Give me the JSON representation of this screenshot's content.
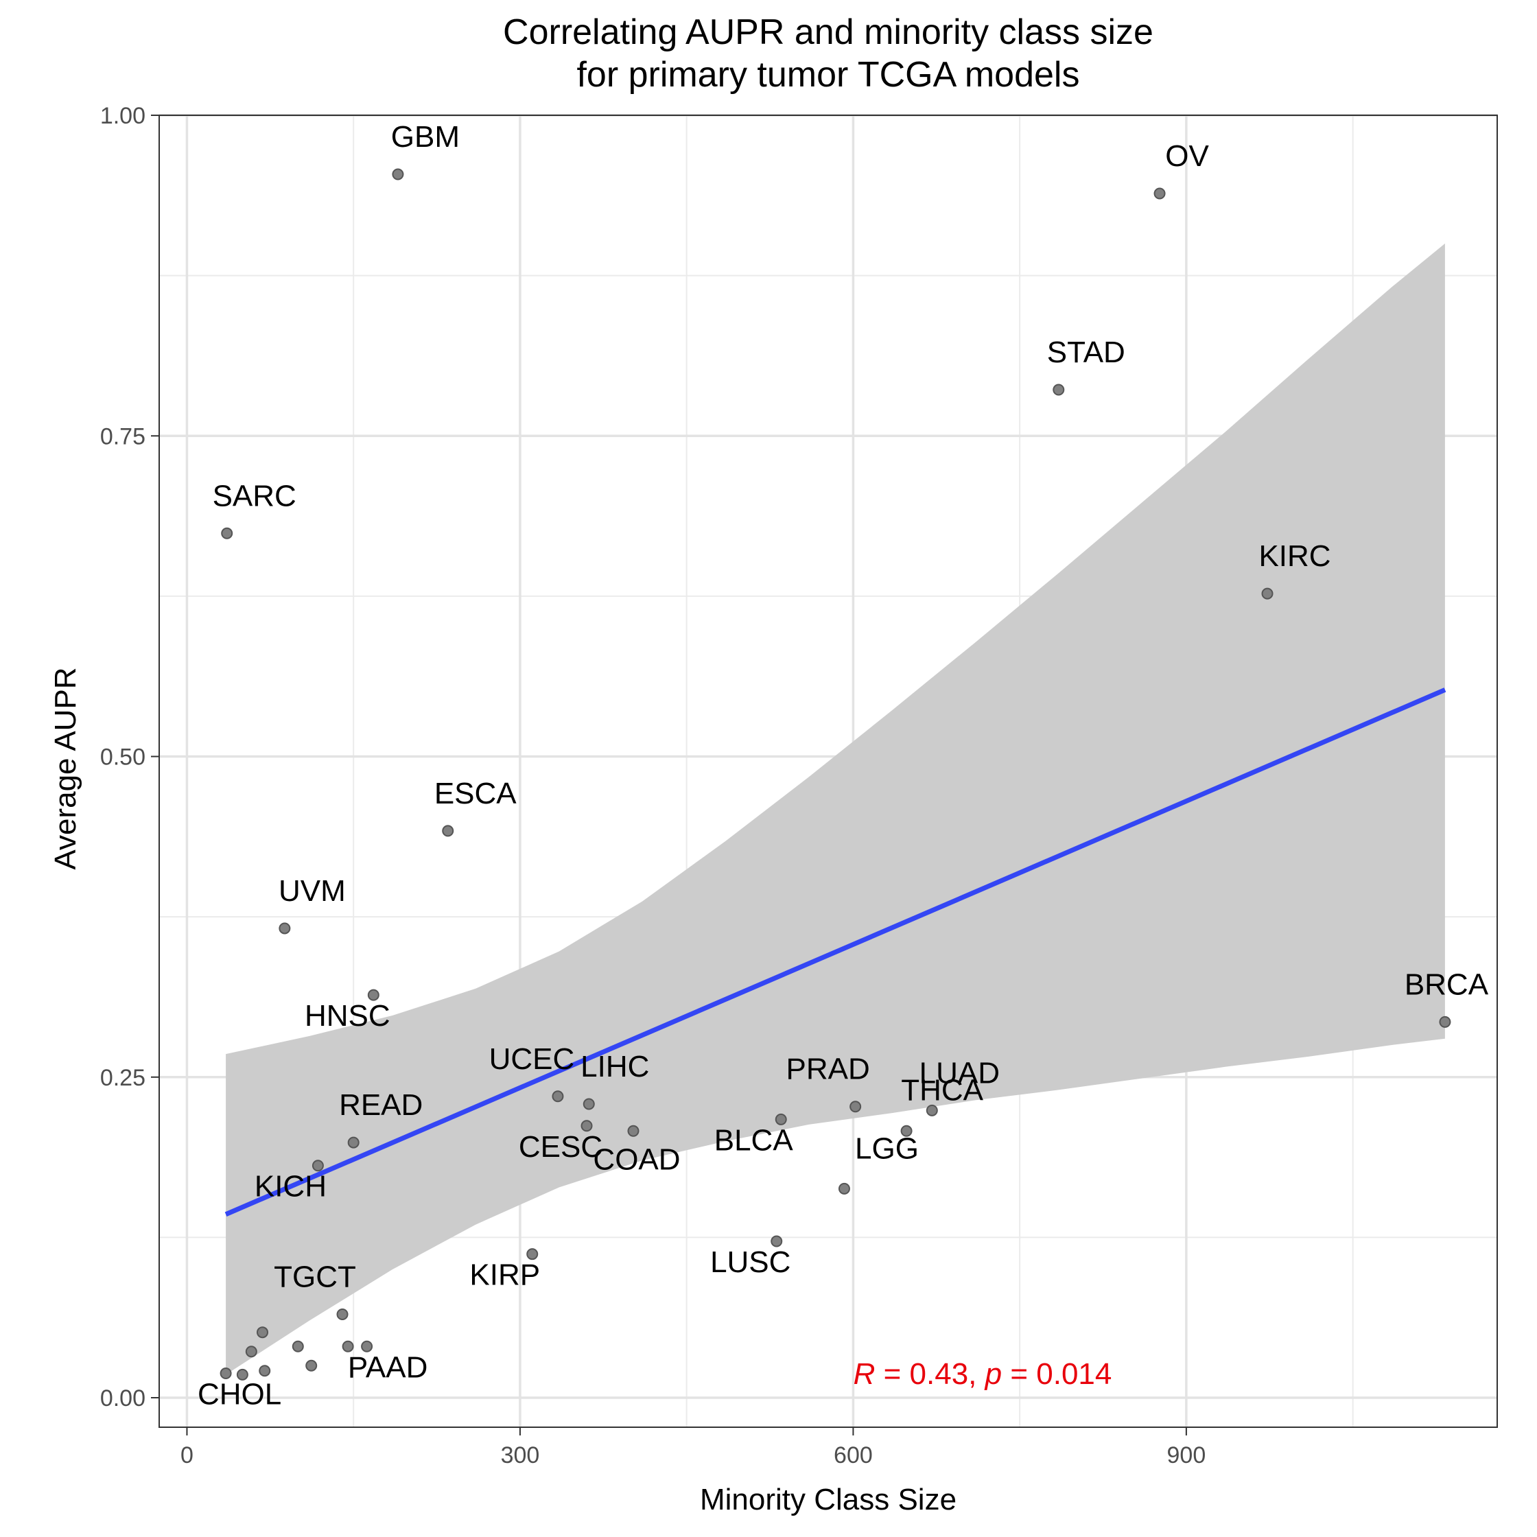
{
  "chart_data": {
    "type": "scatter",
    "title_lines": [
      "Correlating AUPR and minority class size",
      "for primary tumor TCGA models"
    ],
    "xlabel": "Minority Class Size",
    "ylabel": "Average AUPR",
    "xlim": [
      -25,
      1180
    ],
    "ylim": [
      -0.023,
      1.0
    ],
    "x_ticks": [
      0,
      300,
      600,
      900
    ],
    "x_tick_labels": [
      "0",
      "300",
      "600",
      "900"
    ],
    "x_minor_ticks": [
      150,
      450,
      750,
      1050
    ],
    "y_ticks": [
      0,
      0.25,
      0.5,
      0.75,
      1.0
    ],
    "y_tick_labels": [
      "0.00",
      "0.25",
      "0.50",
      "0.75",
      "1.00"
    ],
    "y_minor_ticks": [
      0.125,
      0.375,
      0.625,
      0.875
    ],
    "grid": true,
    "points": [
      {
        "label": "GBM",
        "x": 190,
        "y": 0.954
      },
      {
        "label": "OV",
        "x": 876,
        "y": 0.939
      },
      {
        "label": "STAD",
        "x": 785,
        "y": 0.786
      },
      {
        "label": "SARC",
        "x": 36,
        "y": 0.674
      },
      {
        "label": "KIRC",
        "x": 973,
        "y": 0.627
      },
      {
        "label": "ESCA",
        "x": 235,
        "y": 0.442
      },
      {
        "label": "UVM",
        "x": 88,
        "y": 0.366
      },
      {
        "label": "HNSC",
        "x": 168,
        "y": 0.314
      },
      {
        "label": "BRCA",
        "x": 1133,
        "y": 0.293
      },
      {
        "label": "UCEC",
        "x": 334,
        "y": 0.235
      },
      {
        "label": "LIHC",
        "x": 362,
        "y": 0.229
      },
      {
        "label": "CESC",
        "x": 360,
        "y": 0.212
      },
      {
        "label": "COAD",
        "x": 402,
        "y": 0.208
      },
      {
        "label": "PRAD",
        "x": 602,
        "y": 0.227
      },
      {
        "label": "LUAD",
        "x": 671,
        "y": 0.224
      },
      {
        "label": "BLCA",
        "x": 535,
        "y": 0.217
      },
      {
        "label": "THCA",
        "x": 648,
        "y": 0.208
      },
      {
        "label": "READ",
        "x": 150,
        "y": 0.199
      },
      {
        "label": "KICH",
        "x": 118,
        "y": 0.181
      },
      {
        "label": "LGG",
        "x": 592,
        "y": 0.163
      },
      {
        "label": "LUSC",
        "x": 531,
        "y": 0.122
      },
      {
        "label": "KIRP",
        "x": 311,
        "y": 0.112
      },
      {
        "label": "TGCT",
        "x": 140,
        "y": 0.065
      },
      {
        "label": "PAAD",
        "x": 145,
        "y": 0.04
      },
      {
        "label": "CHOL",
        "x": 35,
        "y": 0.019
      },
      {
        "label": "",
        "x": 68,
        "y": 0.051
      },
      {
        "label": "",
        "x": 58,
        "y": 0.036
      },
      {
        "label": "",
        "x": 70,
        "y": 0.021
      },
      {
        "label": "",
        "x": 50,
        "y": 0.018
      },
      {
        "label": "",
        "x": 100,
        "y": 0.04
      },
      {
        "label": "",
        "x": 112,
        "y": 0.025
      },
      {
        "label": "",
        "x": 162,
        "y": 0.04
      }
    ],
    "trend_line": {
      "x": [
        35,
        1133
      ],
      "y": [
        0.143,
        0.552
      ],
      "color": "#3446f4"
    },
    "confidence_band": {
      "x": [
        35,
        110,
        185,
        260,
        335,
        410,
        485,
        560,
        635,
        710,
        785,
        860,
        935,
        1010,
        1085,
        1133
      ],
      "upper": [
        0.268,
        0.282,
        0.298,
        0.319,
        0.348,
        0.387,
        0.434,
        0.484,
        0.536,
        0.589,
        0.643,
        0.698,
        0.753,
        0.81,
        0.866,
        0.9
      ],
      "lower": [
        0.018,
        0.06,
        0.1,
        0.135,
        0.164,
        0.185,
        0.2,
        0.213,
        0.222,
        0.232,
        0.24,
        0.249,
        0.258,
        0.266,
        0.275,
        0.28
      ],
      "color": "#cccccc"
    },
    "annotation": {
      "r_symbol": "R",
      "r_text": " = 0.43, ",
      "p_symbol": "p",
      "p_text": " = 0.014",
      "color": "#e8000b"
    },
    "point_color": "#808080"
  }
}
